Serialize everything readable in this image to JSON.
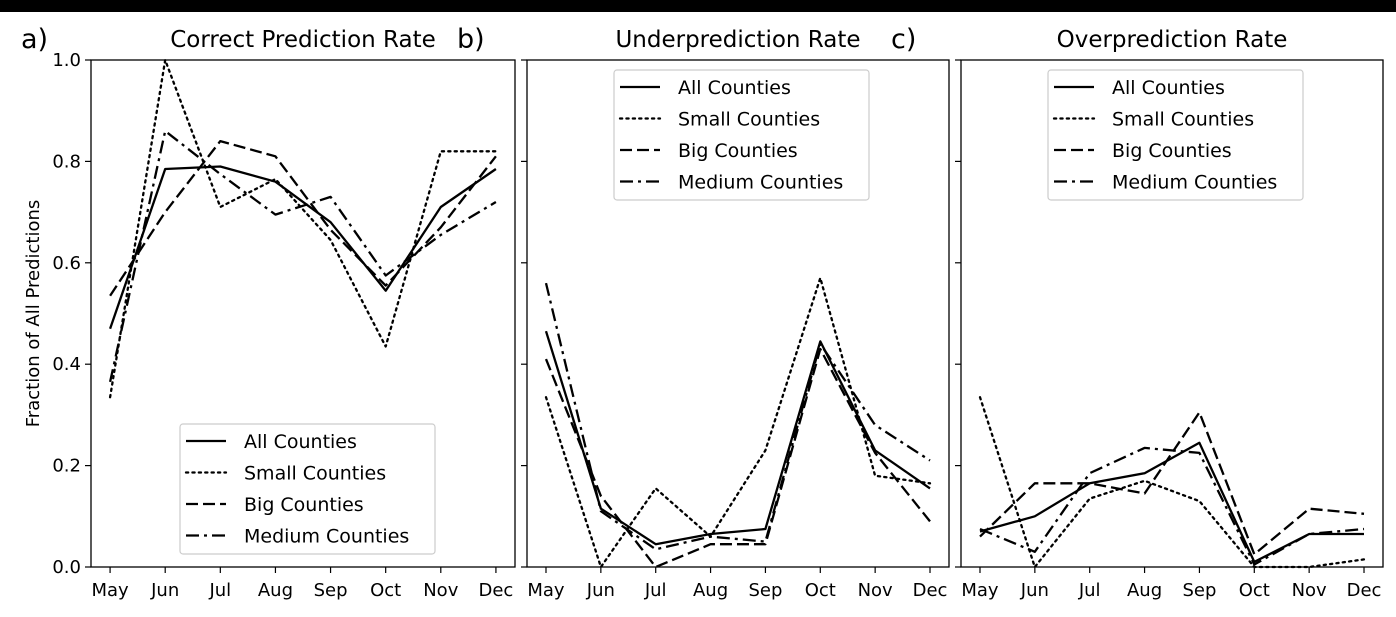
{
  "chart_data": [
    {
      "type": "line",
      "panel_label": "a)",
      "title": "Correct Prediction Rate",
      "ylabel": "Fraction of All Predictions",
      "categories": [
        "May",
        "Jun",
        "Jul",
        "Aug",
        "Sep",
        "Oct",
        "Nov",
        "Dec"
      ],
      "ylim": [
        0,
        1.0
      ],
      "yticks": [
        "0.0",
        "0.2",
        "0.4",
        "0.6",
        "0.8",
        "1.0"
      ],
      "grid": false,
      "legend": "bottom-center",
      "series": [
        {
          "name": "All Counties",
          "style": "solid",
          "values": [
            0.47,
            0.785,
            0.79,
            0.76,
            0.68,
            0.545,
            0.71,
            0.785
          ]
        },
        {
          "name": "Small Counties",
          "style": "dotted",
          "values": [
            0.335,
            1.0,
            0.71,
            0.765,
            0.645,
            0.435,
            0.82,
            0.82
          ]
        },
        {
          "name": "Big Counties",
          "style": "dashed",
          "values": [
            0.535,
            0.7,
            0.84,
            0.81,
            0.665,
            0.555,
            0.67,
            0.81
          ]
        },
        {
          "name": "Medium Counties",
          "style": "dashdot",
          "values": [
            0.365,
            0.86,
            0.775,
            0.695,
            0.73,
            0.575,
            0.655,
            0.72
          ]
        }
      ]
    },
    {
      "type": "line",
      "panel_label": "b)",
      "title": "Underprediction Rate",
      "categories": [
        "May",
        "Jun",
        "Jul",
        "Aug",
        "Sep",
        "Oct",
        "Nov",
        "Dec"
      ],
      "ylim": [
        0,
        1.0
      ],
      "grid": false,
      "legend": "top-center",
      "series": [
        {
          "name": "All Counties",
          "style": "solid",
          "values": [
            0.465,
            0.115,
            0.045,
            0.065,
            0.075,
            0.445,
            0.23,
            0.155
          ]
        },
        {
          "name": "Small Counties",
          "style": "dotted",
          "values": [
            0.335,
            0.0,
            0.155,
            0.06,
            0.23,
            0.57,
            0.18,
            0.165
          ]
        },
        {
          "name": "Big Counties",
          "style": "dashed",
          "values": [
            0.41,
            0.14,
            0.0,
            0.045,
            0.045,
            0.43,
            0.225,
            0.09
          ]
        },
        {
          "name": "Medium Counties",
          "style": "dashdot",
          "values": [
            0.56,
            0.11,
            0.035,
            0.06,
            0.05,
            0.44,
            0.28,
            0.21
          ]
        }
      ]
    },
    {
      "type": "line",
      "panel_label": "c)",
      "title": "Overprediction Rate",
      "categories": [
        "May",
        "Jun",
        "Jul",
        "Aug",
        "Sep",
        "Oct",
        "Nov",
        "Dec"
      ],
      "ylim": [
        0,
        1.0
      ],
      "grid": false,
      "legend": "top-center",
      "series": [
        {
          "name": "All Counties",
          "style": "solid",
          "values": [
            0.07,
            0.1,
            0.165,
            0.185,
            0.245,
            0.01,
            0.065,
            0.065
          ]
        },
        {
          "name": "Small Counties",
          "style": "dotted",
          "values": [
            0.335,
            0.0,
            0.135,
            0.17,
            0.13,
            0.0,
            0.0,
            0.015
          ]
        },
        {
          "name": "Big Counties",
          "style": "dashed",
          "values": [
            0.06,
            0.165,
            0.165,
            0.145,
            0.305,
            0.025,
            0.115,
            0.105
          ]
        },
        {
          "name": "Medium Counties",
          "style": "dashdot",
          "values": [
            0.075,
            0.03,
            0.185,
            0.235,
            0.225,
            0.005,
            0.065,
            0.075
          ]
        }
      ]
    }
  ]
}
